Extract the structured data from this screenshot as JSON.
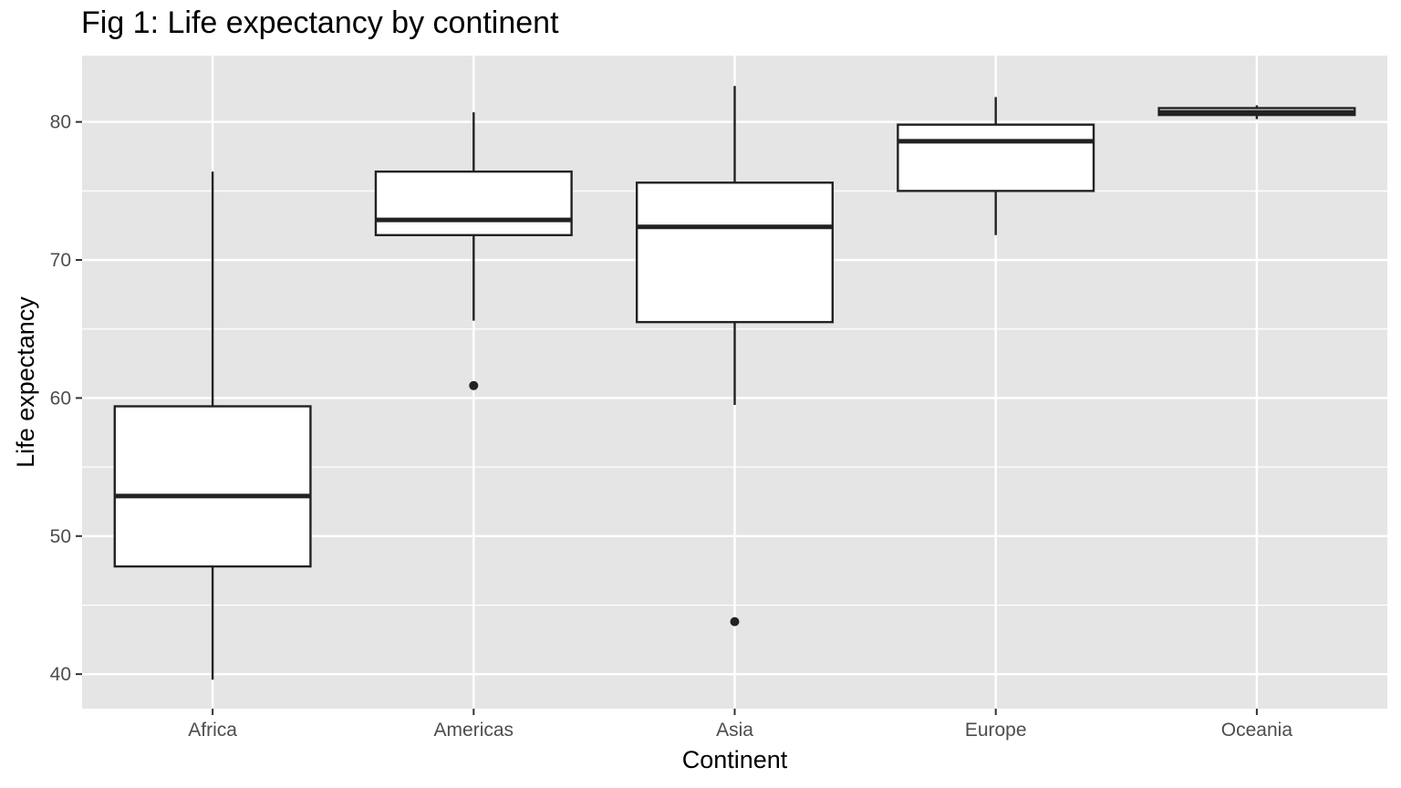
{
  "chart_data": {
    "type": "boxplot",
    "title": "Fig 1: Life expectancy by continent",
    "xlabel": "Continent",
    "ylabel": "Life expectancy",
    "ylim": [
      37.5,
      84.8
    ],
    "yticks": [
      40,
      50,
      60,
      70,
      80
    ],
    "grid": true,
    "legend": "none",
    "colors": {
      "panel": "#e5e5e5",
      "grid": "#ffffff",
      "box_fill": "#ffffff",
      "stroke": "#222222",
      "tick_text": "#4d4d4d"
    },
    "categories": [
      "Africa",
      "Americas",
      "Asia",
      "Europe",
      "Oceania"
    ],
    "boxes": [
      {
        "category": "Africa",
        "whisker_low": 39.6,
        "q1": 47.8,
        "median": 52.9,
        "q3": 59.4,
        "whisker_high": 76.4,
        "outliers": []
      },
      {
        "category": "Americas",
        "whisker_low": 65.6,
        "q1": 71.8,
        "median": 72.9,
        "q3": 76.4,
        "whisker_high": 80.7,
        "outliers": [
          60.9
        ]
      },
      {
        "category": "Asia",
        "whisker_low": 59.5,
        "q1": 65.5,
        "median": 72.4,
        "q3": 75.6,
        "whisker_high": 82.6,
        "outliers": [
          43.8
        ]
      },
      {
        "category": "Europe",
        "whisker_low": 71.8,
        "q1": 75.0,
        "median": 78.6,
        "q3": 79.8,
        "whisker_high": 81.8,
        "outliers": []
      },
      {
        "category": "Oceania",
        "whisker_low": 80.2,
        "q1": 80.5,
        "median": 80.7,
        "q3": 81.0,
        "whisker_high": 81.2,
        "outliers": []
      }
    ]
  }
}
